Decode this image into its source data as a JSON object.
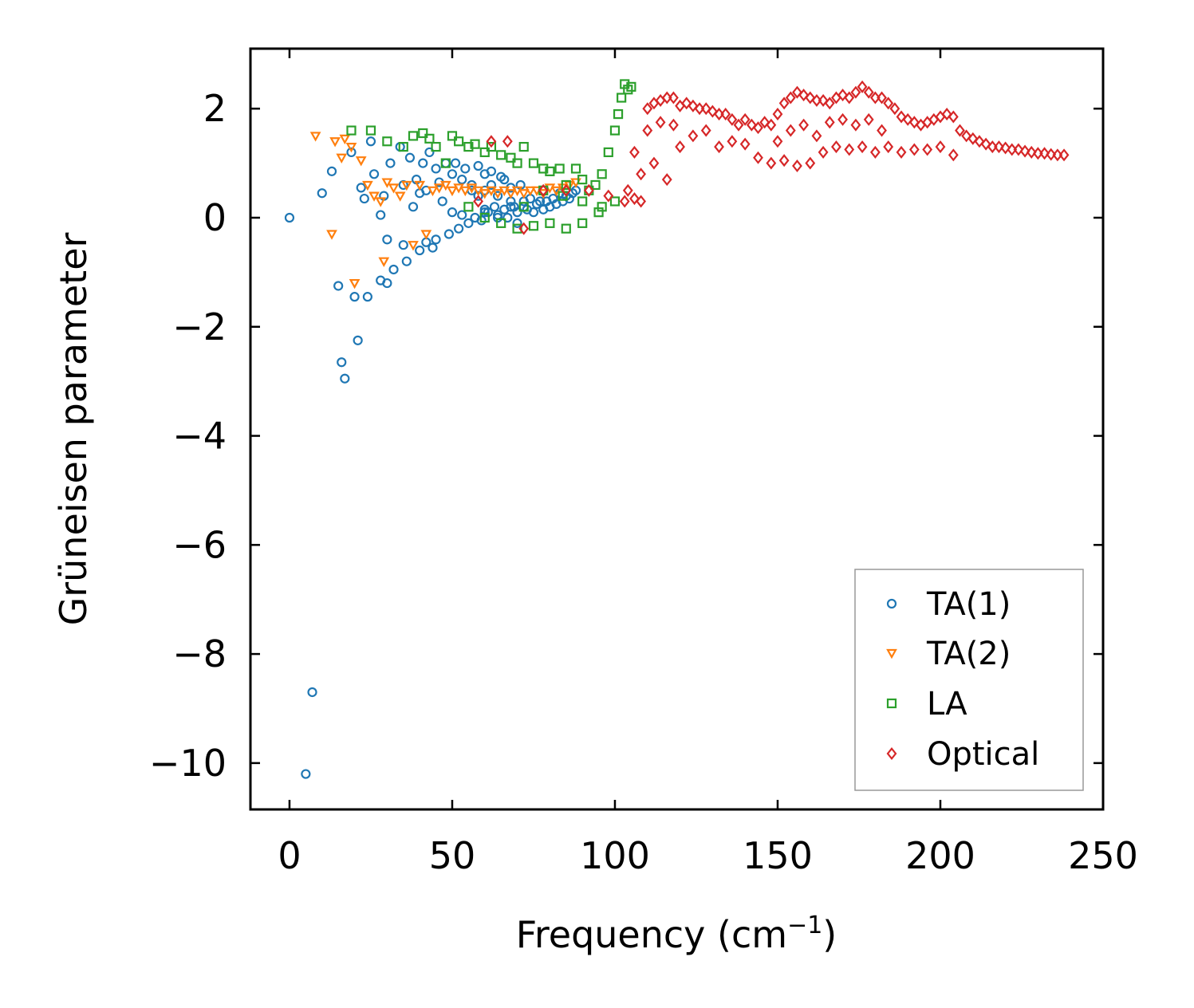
{
  "chart_data": {
    "type": "scatter",
    "title": "",
    "xlabel": "Frequency (cm",
    "xlabel_sup": "−1",
    "xlabel_end": ")",
    "ylabel": "Grüneisen parameter",
    "xlim": [
      -12,
      250
    ],
    "ylim": [
      -10.85,
      3.1
    ],
    "xticks": [
      0,
      50,
      100,
      150,
      200,
      250
    ],
    "yticks": [
      2,
      0,
      -2,
      -4,
      -6,
      -8,
      -10
    ],
    "xtick_labels": [
      "0",
      "50",
      "100",
      "150",
      "200",
      "250"
    ],
    "ytick_labels": [
      "2",
      "0",
      "−2",
      "−4",
      "−6",
      "−8",
      "−10"
    ],
    "legend_position": "lower-right",
    "colors": {
      "TA(1)": "#1f77b4",
      "TA(2)": "#ff7f0e",
      "LA": "#2ca02c",
      "Optical": "#d62728"
    },
    "series": [
      {
        "name": "TA(1)",
        "marker": "circle",
        "color": "#1f77b4",
        "x": [
          0,
          5,
          7,
          10,
          13,
          15,
          16,
          17,
          19,
          20,
          21,
          22,
          23,
          24,
          25,
          26,
          28,
          28,
          29,
          30,
          30,
          31,
          32,
          34,
          35,
          35,
          36,
          37,
          38,
          39,
          40,
          40,
          41,
          42,
          42,
          43,
          44,
          45,
          45,
          46,
          47,
          48,
          49,
          50,
          50,
          51,
          52,
          53,
          53,
          54,
          55,
          56,
          57,
          58,
          59,
          60,
          60,
          61,
          62,
          63,
          64,
          65,
          66,
          67,
          68,
          69,
          70,
          71,
          72,
          73,
          74,
          75,
          76,
          77,
          78,
          79,
          80,
          81,
          82,
          83,
          84,
          85,
          86,
          87,
          88,
          58,
          62,
          66,
          70,
          60,
          64,
          68,
          72,
          56,
          60,
          64,
          68
        ],
        "y": [
          0,
          -10.2,
          -8.7,
          0.45,
          0.85,
          -1.25,
          -2.65,
          -2.95,
          1.2,
          -1.45,
          -2.25,
          0.55,
          0.35,
          -1.45,
          1.4,
          0.8,
          0.05,
          -1.15,
          0.4,
          -0.4,
          -1.2,
          1.0,
          -0.95,
          1.3,
          0.6,
          -0.5,
          -0.8,
          1.1,
          0.2,
          0.7,
          -0.6,
          0.45,
          1.0,
          -0.45,
          0.5,
          1.2,
          -0.55,
          0.9,
          -0.4,
          0.65,
          0.3,
          1.0,
          -0.3,
          0.8,
          0.1,
          1.0,
          -0.2,
          0.7,
          0.05,
          0.9,
          -0.1,
          0.6,
          0.0,
          0.95,
          -0.05,
          0.8,
          0.15,
          0.1,
          0.85,
          0.2,
          0.05,
          0.75,
          0.15,
          0.0,
          0.55,
          0.2,
          0.1,
          0.6,
          0.2,
          0.15,
          0.35,
          0.1,
          0.25,
          0.3,
          0.15,
          0.3,
          0.2,
          0.35,
          0.25,
          0.45,
          0.3,
          0.4,
          0.35,
          0.45,
          0.5,
          0.4,
          0.6,
          0.7,
          -0.1,
          0.1,
          0.0,
          0.2,
          0.3,
          0.5,
          0.5,
          0.4,
          0.3
        ]
      },
      {
        "name": "TA(2)",
        "marker": "triangle-down",
        "color": "#ff7f0e",
        "x": [
          8,
          13,
          14,
          16,
          17,
          19,
          20,
          22,
          24,
          26,
          28,
          29,
          30,
          32,
          34,
          36,
          38,
          40,
          42,
          44,
          46,
          48,
          50,
          52,
          54,
          56,
          58,
          60,
          62,
          64,
          66,
          68,
          70,
          72,
          74,
          76,
          78,
          80,
          82,
          84,
          86,
          88
        ],
        "y": [
          1.5,
          -0.3,
          1.4,
          1.1,
          1.45,
          1.3,
          -1.2,
          1.05,
          0.6,
          0.4,
          0.3,
          -0.8,
          0.65,
          0.55,
          0.4,
          0.6,
          -0.5,
          0.6,
          -0.3,
          0.5,
          0.55,
          0.6,
          0.5,
          0.55,
          0.5,
          0.55,
          0.5,
          0.45,
          0.5,
          0.45,
          0.5,
          0.45,
          0.5,
          0.45,
          0.5,
          0.5,
          0.45,
          0.55,
          0.5,
          0.55,
          0.6,
          0.65
        ]
      },
      {
        "name": "LA",
        "marker": "square",
        "color": "#2ca02c",
        "x": [
          19,
          25,
          30,
          35,
          38,
          41,
          43,
          45,
          48,
          50,
          52,
          55,
          57,
          60,
          62,
          65,
          68,
          70,
          72,
          75,
          78,
          80,
          83,
          85,
          88,
          90,
          92,
          94,
          96,
          98,
          100,
          101,
          102,
          103,
          104,
          105,
          55,
          60,
          65,
          70,
          75,
          80,
          85,
          90,
          95,
          100,
          72,
          78,
          84,
          90,
          96
        ],
        "y": [
          1.6,
          1.6,
          1.4,
          1.3,
          1.5,
          1.55,
          1.45,
          1.3,
          1.0,
          1.5,
          1.4,
          1.3,
          1.35,
          1.2,
          1.3,
          1.15,
          1.1,
          1.0,
          1.3,
          1.0,
          0.9,
          0.85,
          0.9,
          0.6,
          0.9,
          0.7,
          0.5,
          0.6,
          0.8,
          1.2,
          1.6,
          1.9,
          2.2,
          2.45,
          2.35,
          2.4,
          0.2,
          0.0,
          -0.1,
          -0.2,
          -0.15,
          -0.1,
          -0.2,
          -0.1,
          0.1,
          0.3,
          0.2,
          0.5,
          0.4,
          0.3,
          0.2
        ]
      },
      {
        "name": "Optical",
        "marker": "diamond",
        "color": "#d62728",
        "x": [
          58,
          62,
          67,
          72,
          78,
          85,
          92,
          98,
          103,
          106,
          108,
          110,
          112,
          114,
          116,
          118,
          120,
          122,
          124,
          126,
          128,
          130,
          132,
          134,
          136,
          138,
          140,
          142,
          144,
          146,
          148,
          150,
          152,
          154,
          156,
          158,
          160,
          162,
          164,
          166,
          168,
          170,
          172,
          174,
          176,
          178,
          180,
          182,
          184,
          186,
          188,
          190,
          192,
          194,
          196,
          198,
          200,
          202,
          204,
          206,
          208,
          210,
          212,
          214,
          216,
          218,
          220,
          222,
          224,
          226,
          228,
          230,
          232,
          234,
          236,
          238,
          108,
          112,
          116,
          120,
          124,
          128,
          132,
          136,
          140,
          144,
          148,
          152,
          156,
          160,
          164,
          168,
          172,
          176,
          180,
          184,
          188,
          192,
          196,
          200,
          204,
          104,
          106,
          110,
          114,
          118,
          150,
          154,
          158,
          162,
          166,
          170,
          174,
          178,
          182
        ],
        "y": [
          0.3,
          1.4,
          1.4,
          -0.2,
          0.5,
          0.5,
          0.5,
          0.4,
          0.3,
          0.35,
          0.3,
          2.0,
          2.1,
          2.15,
          2.2,
          2.2,
          2.05,
          2.1,
          2.05,
          2.0,
          2.0,
          1.95,
          1.9,
          1.9,
          1.8,
          1.7,
          1.8,
          1.7,
          1.65,
          1.75,
          1.7,
          1.9,
          2.1,
          2.2,
          2.3,
          2.25,
          2.2,
          2.15,
          2.15,
          2.1,
          2.2,
          2.25,
          2.2,
          2.3,
          2.4,
          2.3,
          2.2,
          2.2,
          2.1,
          2.0,
          1.85,
          1.8,
          1.75,
          1.7,
          1.75,
          1.8,
          1.85,
          1.9,
          1.85,
          1.6,
          1.5,
          1.45,
          1.4,
          1.35,
          1.3,
          1.3,
          1.28,
          1.25,
          1.25,
          1.22,
          1.2,
          1.18,
          1.18,
          1.16,
          1.15,
          1.15,
          0.8,
          1.0,
          0.7,
          1.3,
          1.5,
          1.6,
          1.3,
          1.4,
          1.35,
          1.1,
          1.0,
          1.05,
          0.95,
          1.0,
          1.2,
          1.3,
          1.25,
          1.3,
          1.2,
          1.3,
          1.2,
          1.25,
          1.25,
          1.3,
          1.15,
          0.5,
          1.2,
          1.6,
          1.75,
          1.7,
          1.4,
          1.6,
          1.7,
          1.5,
          1.75,
          1.8,
          1.7,
          1.8,
          1.6
        ]
      }
    ]
  }
}
